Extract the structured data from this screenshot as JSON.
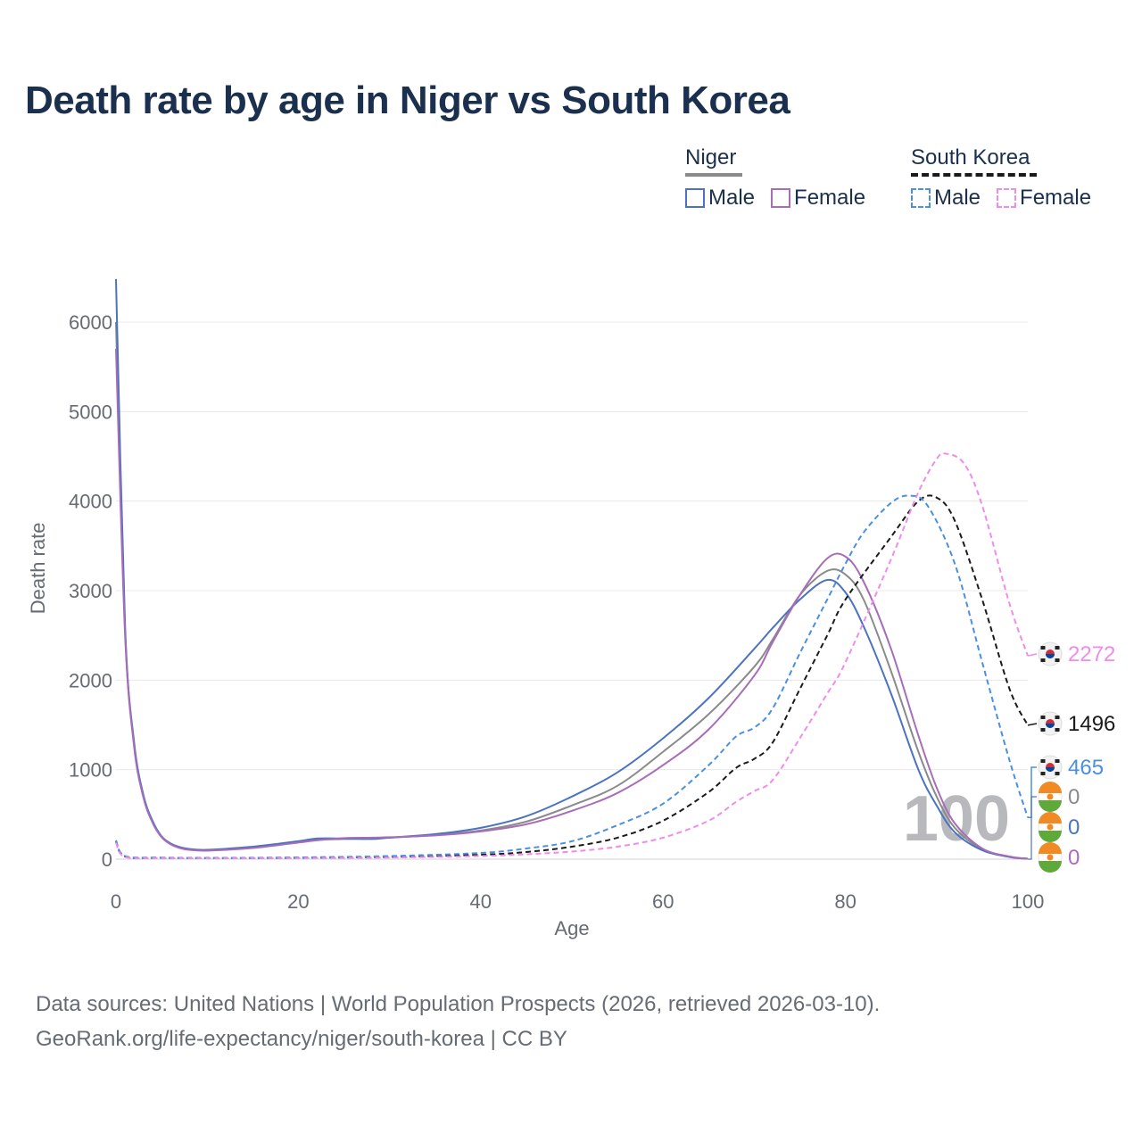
{
  "header": {
    "title": "Death rate by age in Niger vs South Korea"
  },
  "legend": {
    "groups": [
      {
        "name": "Niger",
        "line_color": "#8a8a8a",
        "line_style": "solid",
        "items": [
          {
            "label": "Male",
            "color": "#4a73c0",
            "style": "solid"
          },
          {
            "label": "Female",
            "color": "#a86db8",
            "style": "solid"
          }
        ]
      },
      {
        "name": "South Korea",
        "line_color": "#1a1a1a",
        "line_style": "dashed",
        "items": [
          {
            "label": "Male",
            "color": "#4a8fe0",
            "style": "dashed"
          },
          {
            "label": "Female",
            "color": "#f08ce8",
            "style": "dashed"
          }
        ]
      }
    ]
  },
  "footer": {
    "line1": "Data sources: United Nations | World Population Prospects (2026, retrieved 2026-03-10).",
    "line2": "GeoRank.org/life-expectancy/niger/south-korea | CC BY"
  },
  "chart_data": {
    "type": "line",
    "title": "Death rate by age in Niger vs South Korea",
    "xlabel": "Age",
    "ylabel": "Death rate",
    "xlim": [
      0,
      100
    ],
    "ylim": [
      0,
      6500
    ],
    "xticks": [
      0,
      20,
      40,
      60,
      80,
      100
    ],
    "yticks": [
      0,
      1000,
      2000,
      3000,
      4000,
      5000,
      6000
    ],
    "grid": true,
    "current_age_label": "100",
    "series": [
      {
        "name": "Niger (total)",
        "country": "Niger",
        "sex": "Total",
        "color": "#8a8a8a",
        "dash": false,
        "end_label": "0",
        "x": [
          0,
          1,
          2,
          3,
          4,
          5,
          6,
          7,
          8,
          10,
          15,
          20,
          22,
          25,
          28,
          30,
          35,
          40,
          45,
          50,
          55,
          60,
          65,
          70,
          72,
          75,
          78,
          80,
          82,
          85,
          88,
          90,
          92,
          95,
          98,
          100
        ],
        "y": [
          6000,
          2550,
          1270,
          700,
          420,
          250,
          170,
          130,
          110,
          100,
          130,
          190,
          215,
          225,
          230,
          240,
          270,
          320,
          420,
          600,
          820,
          1200,
          1620,
          2150,
          2450,
          2950,
          3220,
          3180,
          2900,
          2100,
          1200,
          700,
          350,
          110,
          25,
          5
        ]
      },
      {
        "name": "Niger (male)",
        "country": "Niger",
        "sex": "Male",
        "color": "#4a73c0",
        "dash": false,
        "end_label": "0",
        "x": [
          0,
          1,
          2,
          3,
          4,
          5,
          6,
          7,
          8,
          10,
          15,
          20,
          22,
          25,
          28,
          30,
          35,
          40,
          45,
          50,
          55,
          60,
          65,
          70,
          72,
          75,
          78,
          80,
          82,
          85,
          88,
          90,
          92,
          95,
          98,
          100
        ],
        "y": [
          6480,
          2600,
          1300,
          720,
          430,
          255,
          175,
          135,
          115,
          105,
          140,
          200,
          230,
          230,
          225,
          240,
          280,
          350,
          480,
          700,
          970,
          1350,
          1800,
          2350,
          2580,
          2900,
          3120,
          2980,
          2600,
          1850,
          1000,
          600,
          300,
          100,
          25,
          5
        ]
      },
      {
        "name": "Niger (female)",
        "country": "Niger",
        "sex": "Female",
        "color": "#a86db8",
        "dash": false,
        "end_label": "0",
        "x": [
          0,
          1,
          2,
          3,
          4,
          5,
          6,
          7,
          8,
          10,
          15,
          20,
          22,
          25,
          28,
          30,
          35,
          40,
          45,
          50,
          55,
          60,
          65,
          70,
          72,
          75,
          78,
          80,
          82,
          85,
          88,
          90,
          92,
          95,
          98,
          100
        ],
        "y": [
          5700,
          2500,
          1250,
          690,
          410,
          245,
          165,
          125,
          105,
          95,
          125,
          185,
          210,
          235,
          240,
          245,
          265,
          310,
          390,
          540,
          740,
          1050,
          1450,
          2050,
          2420,
          2950,
          3360,
          3380,
          3100,
          2350,
          1380,
          800,
          400,
          120,
          30,
          5
        ]
      },
      {
        "name": "South Korea (total)",
        "country": "South Korea",
        "sex": "Total",
        "color": "#1a1a1a",
        "dash": true,
        "end_label": "1496",
        "x": [
          0,
          1,
          5,
          10,
          20,
          30,
          40,
          45,
          50,
          55,
          60,
          65,
          68,
          70,
          72,
          75,
          78,
          80,
          85,
          88,
          90,
          92,
          95,
          98,
          100
        ],
        "y": [
          200,
          30,
          15,
          12,
          15,
          25,
          50,
          80,
          140,
          240,
          430,
          750,
          1020,
          1120,
          1300,
          1900,
          2500,
          2900,
          3600,
          4000,
          4040,
          3780,
          2900,
          1900,
          1496
        ]
      },
      {
        "name": "South Korea (male)",
        "country": "South Korea",
        "sex": "Male",
        "color": "#4a8fe0",
        "dash": true,
        "end_label": "465",
        "x": [
          0,
          1,
          5,
          10,
          20,
          30,
          40,
          45,
          50,
          55,
          60,
          65,
          68,
          70,
          72,
          75,
          78,
          80,
          82,
          85,
          87,
          89,
          92,
          95,
          98,
          100
        ],
        "y": [
          210,
          35,
          18,
          14,
          20,
          35,
          70,
          120,
          200,
          380,
          620,
          1050,
          1370,
          1470,
          1680,
          2300,
          2900,
          3300,
          3650,
          3980,
          4060,
          3950,
          3300,
          2200,
          1100,
          465
        ]
      },
      {
        "name": "South Korea (female)",
        "country": "South Korea",
        "sex": "Female",
        "color": "#f08ce8",
        "dash": true,
        "end_label": "2272",
        "x": [
          0,
          1,
          5,
          10,
          20,
          30,
          40,
          45,
          50,
          55,
          60,
          65,
          68,
          70,
          72,
          75,
          78,
          80,
          85,
          88,
          90,
          91,
          93,
          95,
          98,
          100
        ],
        "y": [
          180,
          25,
          12,
          10,
          12,
          18,
          35,
          55,
          85,
          140,
          240,
          430,
          640,
          760,
          880,
          1350,
          1850,
          2200,
          3350,
          4100,
          4470,
          4530,
          4420,
          3950,
          2850,
          2272
        ]
      }
    ]
  }
}
